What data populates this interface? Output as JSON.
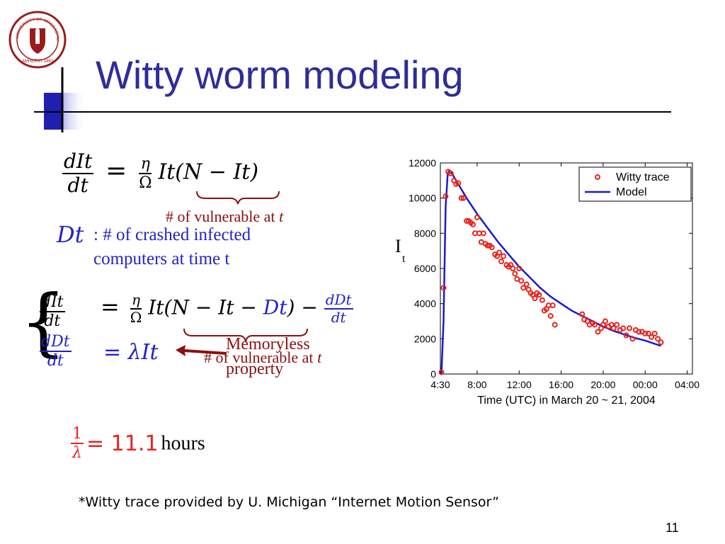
{
  "slide": {
    "title": "Witty worm modeling",
    "page_number": "11",
    "logo_text": "UNIVERSITY OF MASSACHUSETTS · AMHERST 1863"
  },
  "equations": {
    "eq1_num": "dIt",
    "eq1_den": "dt",
    "eq1_frac_num": "η",
    "eq1_frac_den": "Ω",
    "eq1_rhs": "It(N − It)",
    "brace1_label_text": "# of vulnerable at ",
    "brace1_label_var": "t",
    "dt_symbol": "Dt",
    "dt_desc_line1": ": # of crashed infected",
    "dt_desc_line2": "computers at time t",
    "sys_eq1_rhs_a": "It(N − It − ",
    "sys_eq1_rhs_b": "Dt",
    "sys_eq1_rhs_c": ") −",
    "sys_eq1_last_num": "dDt",
    "sys_eq1_last_den": "dt",
    "sys_eq2_num": "dDt",
    "sys_eq2_den": "dt",
    "sys_eq2_rhs": "= λIt",
    "brace2_label_text": "# of vulnerable at ",
    "brace2_label_var": "t",
    "memoryless_line1": "Memoryless",
    "memoryless_line2": "property",
    "lambda_num": "1",
    "lambda_den": "λ",
    "lambda_value": "= 11.1",
    "lambda_unit": "hours"
  },
  "footnote": "*Witty trace provided by U. Michigan “Internet Motion Sensor”",
  "chart_data": {
    "type": "scatter",
    "xlabel": "Time (UTC) in March 20 ~ 21, 2004",
    "ylabel": "I",
    "ylabel_sub": "t",
    "x_ticks": [
      {
        "x": 4.5,
        "label": "4:30"
      },
      {
        "x": 8,
        "label": "8:00"
      },
      {
        "x": 12,
        "label": "12:00"
      },
      {
        "x": 16,
        "label": "16:00"
      },
      {
        "x": 20,
        "label": "20:00"
      },
      {
        "x": 24,
        "label": "00:00"
      },
      {
        "x": 28,
        "label": "04:00"
      }
    ],
    "xlim": [
      4.5,
      28.5
    ],
    "ylim": [
      0,
      12000
    ],
    "y_ticks": [
      0,
      2000,
      4000,
      6000,
      8000,
      10000,
      12000
    ],
    "legend_placement": "top-right",
    "series": [
      {
        "name": "Witty trace",
        "style": "marker",
        "color": "#e8231c",
        "points": [
          [
            4.6,
            100
          ],
          [
            4.8,
            4900
          ],
          [
            5.0,
            10100
          ],
          [
            5.25,
            11500
          ],
          [
            5.5,
            11400
          ],
          [
            5.8,
            11000
          ],
          [
            6.0,
            10800
          ],
          [
            6.2,
            10850
          ],
          [
            6.5,
            10000
          ],
          [
            6.7,
            10000
          ],
          [
            7.0,
            8700
          ],
          [
            7.2,
            8700
          ],
          [
            7.4,
            8600
          ],
          [
            7.6,
            8500
          ],
          [
            7.8,
            8000
          ],
          [
            8.0,
            8900
          ],
          [
            8.2,
            8000
          ],
          [
            8.4,
            7500
          ],
          [
            8.6,
            8000
          ],
          [
            8.8,
            7400
          ],
          [
            9.0,
            7300
          ],
          [
            9.2,
            7300
          ],
          [
            9.4,
            7200
          ],
          [
            9.7,
            6800
          ],
          [
            9.9,
            6700
          ],
          [
            10.1,
            6900
          ],
          [
            10.3,
            6400
          ],
          [
            10.5,
            6700
          ],
          [
            10.8,
            6200
          ],
          [
            11.0,
            6100
          ],
          [
            11.2,
            6200
          ],
          [
            11.4,
            6000
          ],
          [
            11.6,
            5700
          ],
          [
            11.8,
            5400
          ],
          [
            12.0,
            6000
          ],
          [
            12.2,
            5300
          ],
          [
            12.4,
            4900
          ],
          [
            12.7,
            5100
          ],
          [
            12.9,
            4800
          ],
          [
            13.1,
            4600
          ],
          [
            13.3,
            4500
          ],
          [
            13.5,
            4300
          ],
          [
            13.7,
            4600
          ],
          [
            13.9,
            4500
          ],
          [
            14.2,
            4200
          ],
          [
            14.4,
            3600
          ],
          [
            14.6,
            3700
          ],
          [
            14.8,
            3900
          ],
          [
            15.0,
            3300
          ],
          [
            15.2,
            3900
          ],
          [
            15.4,
            2800
          ],
          [
            18.0,
            3400
          ],
          [
            18.2,
            3100
          ],
          [
            18.5,
            3000
          ],
          [
            18.7,
            2800
          ],
          [
            19.0,
            2900
          ],
          [
            19.2,
            2800
          ],
          [
            19.5,
            2400
          ],
          [
            19.8,
            2600
          ],
          [
            20.0,
            2800
          ],
          [
            20.2,
            3000
          ],
          [
            20.5,
            2700
          ],
          [
            20.8,
            2800
          ],
          [
            21.0,
            2600
          ],
          [
            21.3,
            2800
          ],
          [
            21.6,
            2500
          ],
          [
            21.9,
            2600
          ],
          [
            22.2,
            2200
          ],
          [
            22.5,
            2600
          ],
          [
            22.8,
            2000
          ],
          [
            23.1,
            2500
          ],
          [
            23.4,
            2400
          ],
          [
            23.7,
            2400
          ],
          [
            24.0,
            2300
          ],
          [
            24.3,
            2300
          ],
          [
            24.6,
            2100
          ],
          [
            24.9,
            2300
          ],
          [
            25.2,
            2000
          ],
          [
            25.5,
            1800
          ]
        ]
      },
      {
        "name": "Model",
        "style": "line",
        "color": "#1a1ad0",
        "points": [
          [
            4.6,
            0
          ],
          [
            4.8,
            3000
          ],
          [
            5.0,
            9500
          ],
          [
            5.2,
            11400
          ],
          [
            5.35,
            11550
          ],
          [
            5.6,
            11400
          ],
          [
            6.0,
            11000
          ],
          [
            7.0,
            10000
          ],
          [
            8.0,
            9100
          ],
          [
            9.0,
            8300
          ],
          [
            10.0,
            7500
          ],
          [
            11.0,
            6800
          ],
          [
            12.0,
            6100
          ],
          [
            13.0,
            5500
          ],
          [
            14.0,
            4900
          ],
          [
            15.0,
            4400
          ],
          [
            16.0,
            4000
          ],
          [
            17.0,
            3600
          ],
          [
            18.0,
            3300
          ],
          [
            19.0,
            3000
          ],
          [
            20.0,
            2700
          ],
          [
            21.0,
            2450
          ],
          [
            22.0,
            2250
          ],
          [
            23.0,
            2050
          ],
          [
            24.0,
            1900
          ],
          [
            25.0,
            1700
          ],
          [
            25.5,
            1600
          ]
        ]
      }
    ]
  }
}
